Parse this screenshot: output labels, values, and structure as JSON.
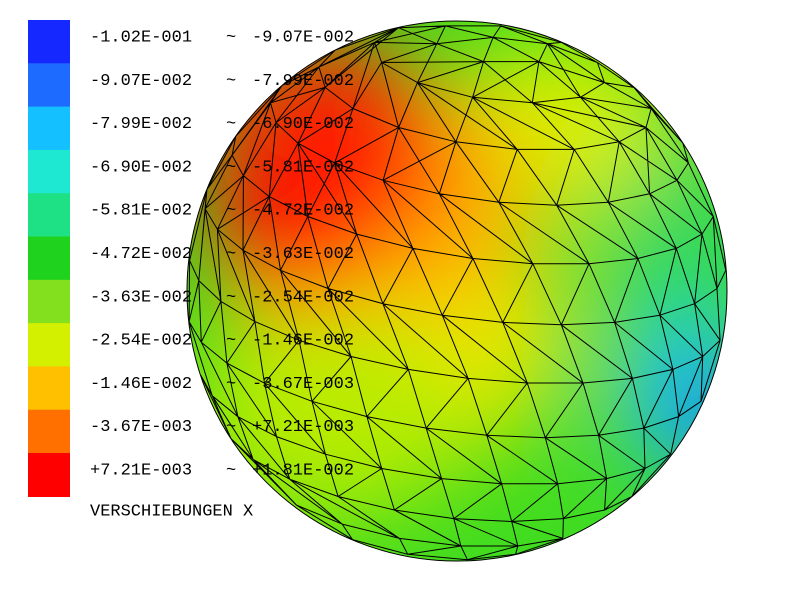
{
  "legend": {
    "separator": "~",
    "entries": [
      {
        "color": "#1428ff",
        "from": "-1.02E-001",
        "to": "-9.07E-002"
      },
      {
        "color": "#1e6cff",
        "from": "-9.07E-002",
        "to": "-7.99E-002"
      },
      {
        "color": "#14c0ff",
        "from": "-7.99E-002",
        "to": "-6.90E-002"
      },
      {
        "color": "#1ee8d2",
        "from": "-6.90E-002",
        "to": "-5.81E-002"
      },
      {
        "color": "#1ee084",
        "from": "-5.81E-002",
        "to": "-4.72E-002"
      },
      {
        "color": "#1ed21e",
        "from": "-4.72E-002",
        "to": "-3.63E-002"
      },
      {
        "color": "#82e01e",
        "from": "-3.63E-002",
        "to": "-2.54E-002"
      },
      {
        "color": "#d2f000",
        "from": "-2.54E-002",
        "to": "-1.46E-002"
      },
      {
        "color": "#ffc000",
        "from": "-1.46E-002",
        "to": "-3.67E-003"
      },
      {
        "color": "#ff7000",
        "from": "-3.67E-003",
        "to": "+7.21E-003"
      },
      {
        "color": "#ff0000",
        "from": "+7.21E-003",
        "to": "+1.81E-002"
      }
    ]
  },
  "title": "VERSCHIEBUNGEN X"
}
